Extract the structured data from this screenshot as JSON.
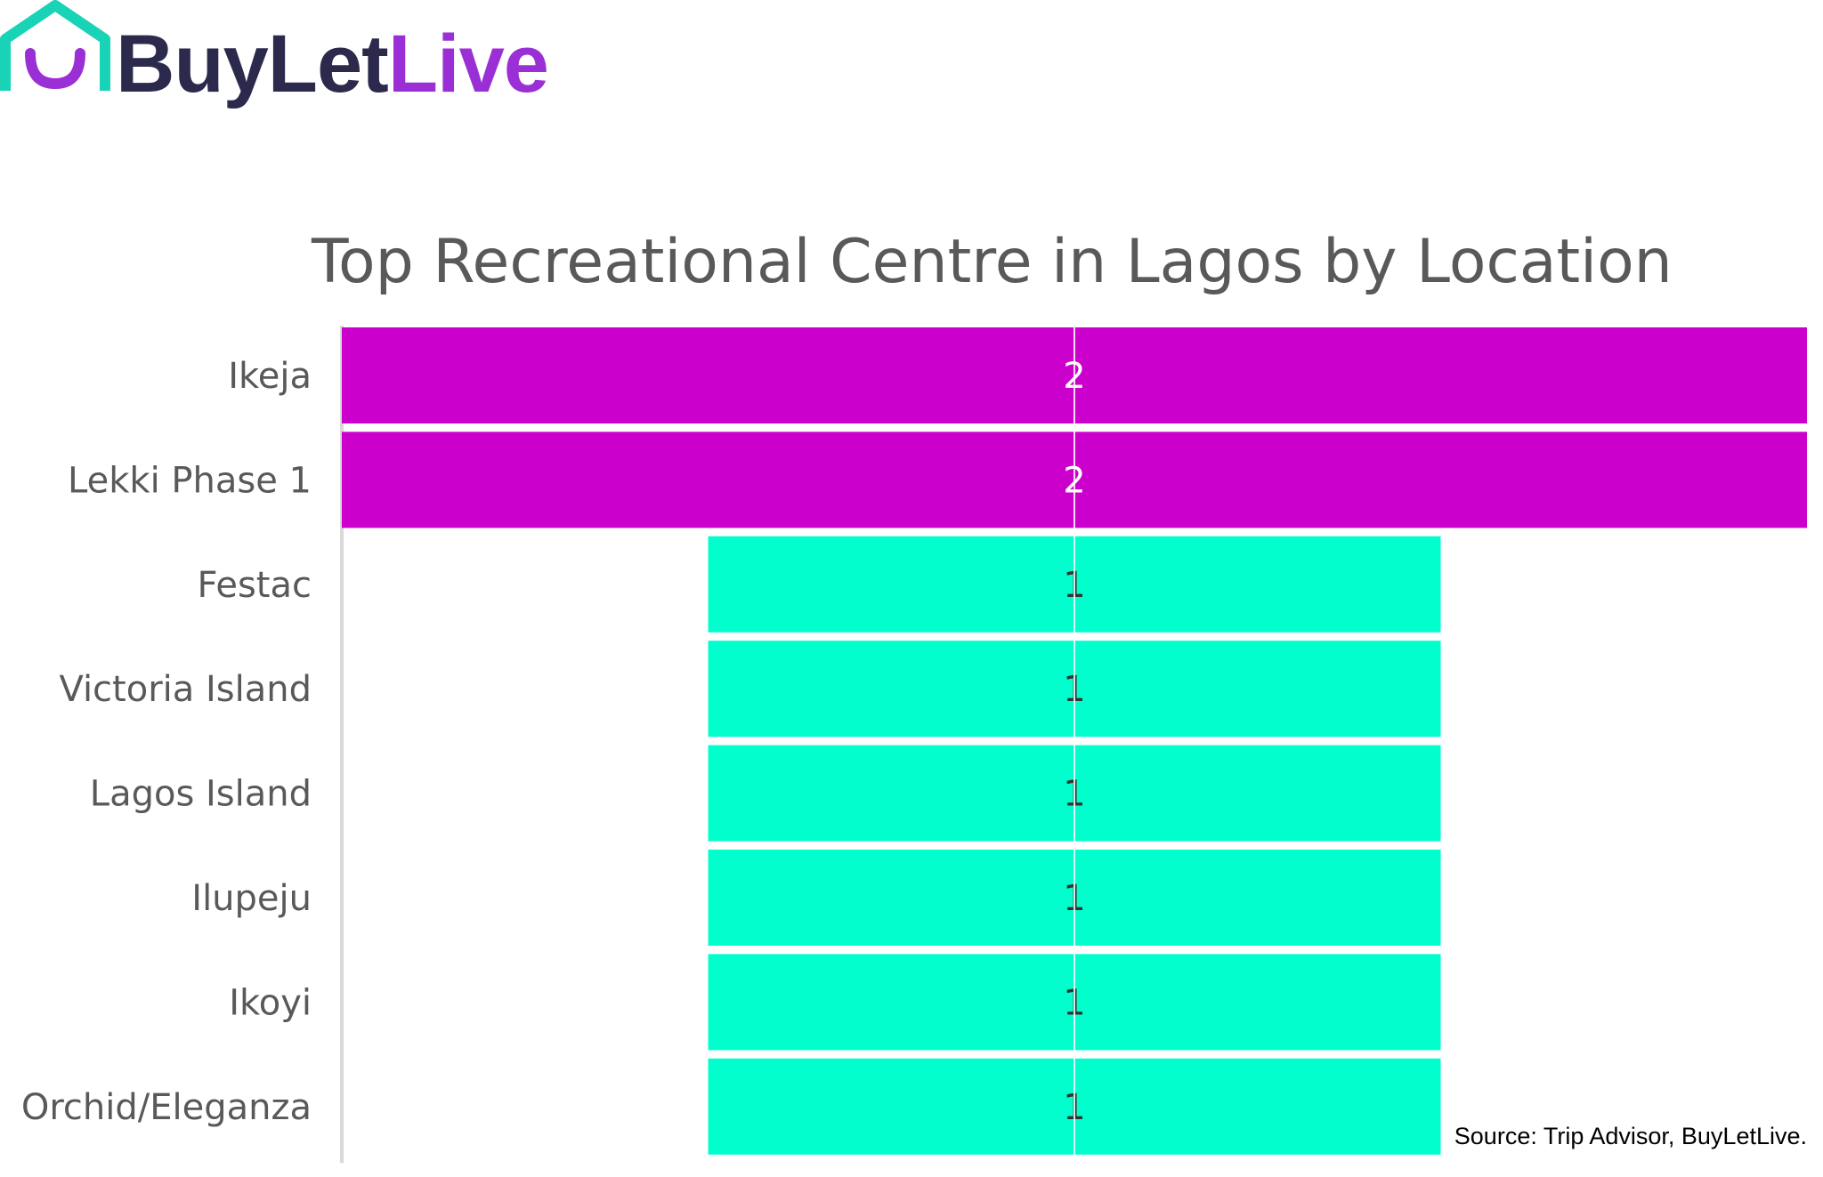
{
  "brand": {
    "name_part1": "BuyLet",
    "name_part2": "Live",
    "colors": {
      "text_dark": "#2b2a4c",
      "purple": "#9b2fd6",
      "teal": "#19d3b6"
    }
  },
  "chart_data": {
    "type": "bar",
    "orientation": "horizontal",
    "title": "Top Recreational Centre in Lagos by Location",
    "xlabel": "",
    "ylabel": "",
    "categories": [
      "Ikeja",
      "Lekki Phase 1",
      "Festac",
      "Victoria Island",
      "Lagos Island",
      "Ilupeju",
      "Ikoyi",
      "Orchid/Eleganza"
    ],
    "values": [
      2,
      2,
      1,
      1,
      1,
      1,
      1,
      1
    ],
    "data_labels": [
      "2",
      "2",
      "1",
      "1",
      "1",
      "1",
      "1",
      "1"
    ],
    "bar_colors": [
      "#cc00cc",
      "#cc00cc",
      "#00ffcc",
      "#00ffcc",
      "#00ffcc",
      "#00ffcc",
      "#00ffcc",
      "#00ffcc"
    ],
    "label_colors": [
      "#ffffff",
      "#ffffff",
      "#333333",
      "#333333",
      "#333333",
      "#333333",
      "#333333",
      "#333333"
    ],
    "xlim": [
      0,
      2
    ],
    "grid": true,
    "legend": "none"
  },
  "source": "Source: Trip Advisor, BuyLetLive."
}
